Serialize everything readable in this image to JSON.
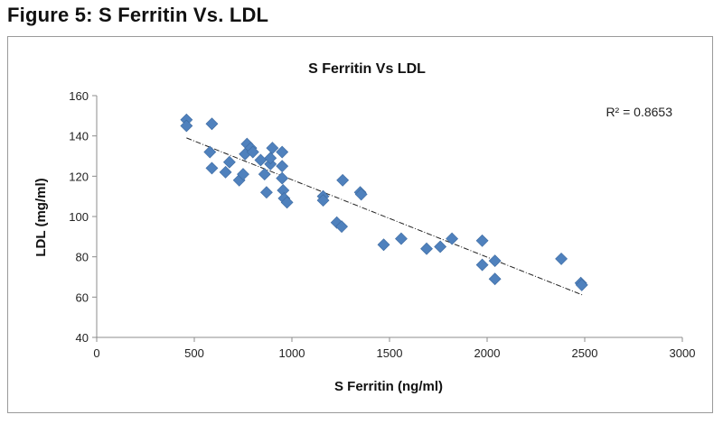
{
  "figure": {
    "caption": "Figure 5: S Ferritin Vs. LDL"
  },
  "chart_data": {
    "type": "scatter",
    "title": "S Ferritin Vs LDL",
    "xlabel": "S Ferritin (ng/ml)",
    "ylabel": "LDL (mg/ml)",
    "xlim": [
      0,
      3000
    ],
    "ylim": [
      40,
      160
    ],
    "xticks": [
      0,
      500,
      1000,
      1500,
      2000,
      2500,
      3000
    ],
    "yticks": [
      40,
      60,
      80,
      100,
      120,
      140,
      160
    ],
    "grid": false,
    "legend": "none",
    "marker_color": "#4f81bd",
    "trendline": {
      "type": "linear",
      "x_start": 460,
      "y_start": 139,
      "x_end": 2490,
      "y_end": 61,
      "r_squared_label": "R² = 0.8653"
    },
    "points": [
      {
        "x": 460,
        "y": 148
      },
      {
        "x": 460,
        "y": 145
      },
      {
        "x": 590,
        "y": 146
      },
      {
        "x": 580,
        "y": 132
      },
      {
        "x": 590,
        "y": 124
      },
      {
        "x": 660,
        "y": 122
      },
      {
        "x": 680,
        "y": 127
      },
      {
        "x": 730,
        "y": 118
      },
      {
        "x": 750,
        "y": 121
      },
      {
        "x": 760,
        "y": 131
      },
      {
        "x": 770,
        "y": 136
      },
      {
        "x": 790,
        "y": 134
      },
      {
        "x": 800,
        "y": 132
      },
      {
        "x": 840,
        "y": 128
      },
      {
        "x": 860,
        "y": 121
      },
      {
        "x": 870,
        "y": 112
      },
      {
        "x": 890,
        "y": 126
      },
      {
        "x": 890,
        "y": 129
      },
      {
        "x": 900,
        "y": 134
      },
      {
        "x": 950,
        "y": 132
      },
      {
        "x": 950,
        "y": 125
      },
      {
        "x": 950,
        "y": 119
      },
      {
        "x": 955,
        "y": 113
      },
      {
        "x": 960,
        "y": 109
      },
      {
        "x": 975,
        "y": 107
      },
      {
        "x": 1160,
        "y": 110
      },
      {
        "x": 1160,
        "y": 108
      },
      {
        "x": 1230,
        "y": 97
      },
      {
        "x": 1255,
        "y": 95
      },
      {
        "x": 1260,
        "y": 118
      },
      {
        "x": 1350,
        "y": 112
      },
      {
        "x": 1355,
        "y": 111
      },
      {
        "x": 1470,
        "y": 86
      },
      {
        "x": 1560,
        "y": 89
      },
      {
        "x": 1690,
        "y": 84
      },
      {
        "x": 1760,
        "y": 85
      },
      {
        "x": 1820,
        "y": 89
      },
      {
        "x": 1975,
        "y": 88
      },
      {
        "x": 1975,
        "y": 76
      },
      {
        "x": 2040,
        "y": 78
      },
      {
        "x": 2040,
        "y": 69
      },
      {
        "x": 2380,
        "y": 79
      },
      {
        "x": 2480,
        "y": 67
      },
      {
        "x": 2485,
        "y": 66
      }
    ]
  }
}
